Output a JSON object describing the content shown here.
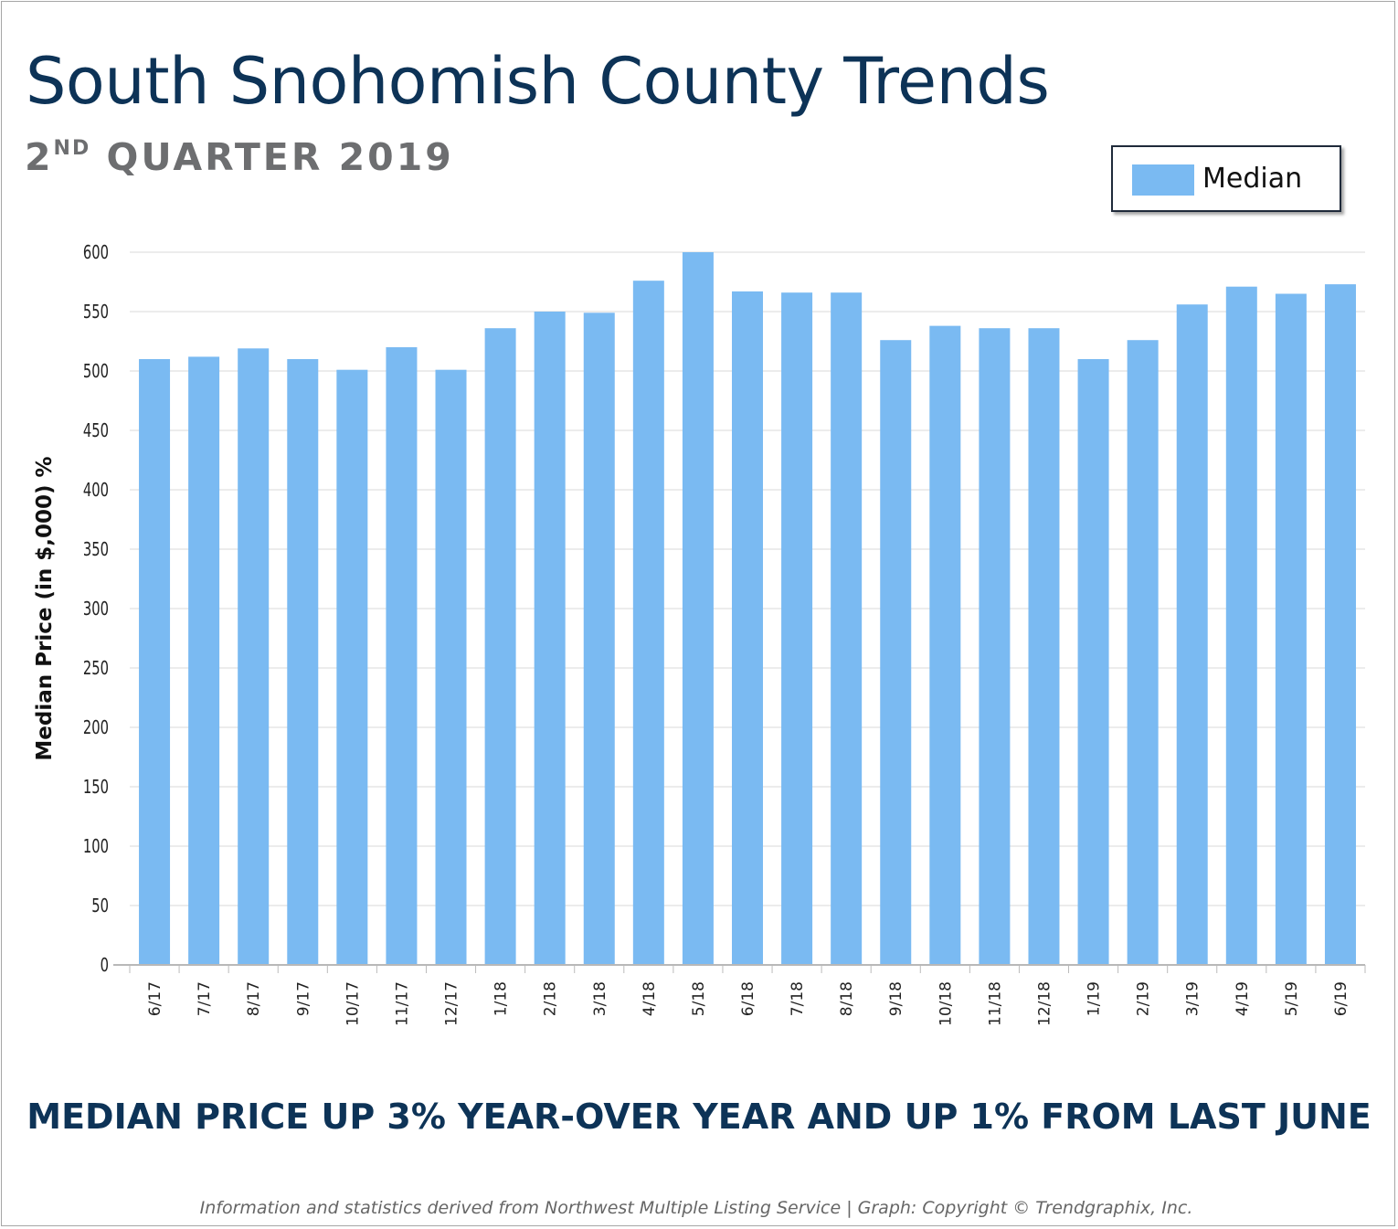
{
  "title": "South Snohomish County Trends",
  "subtitle": {
    "ordinal_number": "2",
    "ordinal_suffix": "ND",
    "rest": " QUARTER 2019"
  },
  "legend": {
    "label": "Median",
    "color": "#7abaf2"
  },
  "headline": "MEDIAN PRICE UP 3% YEAR-OVER YEAR AND UP 1% FROM LAST JUNE",
  "footer": "Information and statistics derived from Northwest Multiple Listing Service  |  Graph: Copyright © Trendgraphix, Inc.",
  "colors": {
    "title": "#0d3357",
    "subtitle": "#6d6e70",
    "bar": "#7abaf2",
    "grid": "#e6e6e6"
  },
  "chart_data": {
    "type": "bar",
    "ylabel": "Median Price (in $,000) %",
    "xlabel": "",
    "ylim": [
      0,
      600
    ],
    "yticks": [
      0,
      50,
      100,
      150,
      200,
      250,
      300,
      350,
      400,
      450,
      500,
      550,
      600
    ],
    "grid": true,
    "legend_position": "top-right",
    "categories": [
      "6/17",
      "7/17",
      "8/17",
      "9/17",
      "10/17",
      "11/17",
      "12/17",
      "1/18",
      "2/18",
      "3/18",
      "4/18",
      "5/18",
      "6/18",
      "7/18",
      "8/18",
      "9/18",
      "10/18",
      "11/18",
      "12/18",
      "1/19",
      "2/19",
      "3/19",
      "4/19",
      "5/19",
      "6/19"
    ],
    "series": [
      {
        "name": "Median",
        "values": [
          510,
          512,
          519,
          510,
          501,
          520,
          501,
          536,
          550,
          549,
          576,
          600,
          567,
          566,
          566,
          526,
          538,
          536,
          536,
          510,
          526,
          556,
          571,
          565,
          573
        ]
      }
    ]
  }
}
